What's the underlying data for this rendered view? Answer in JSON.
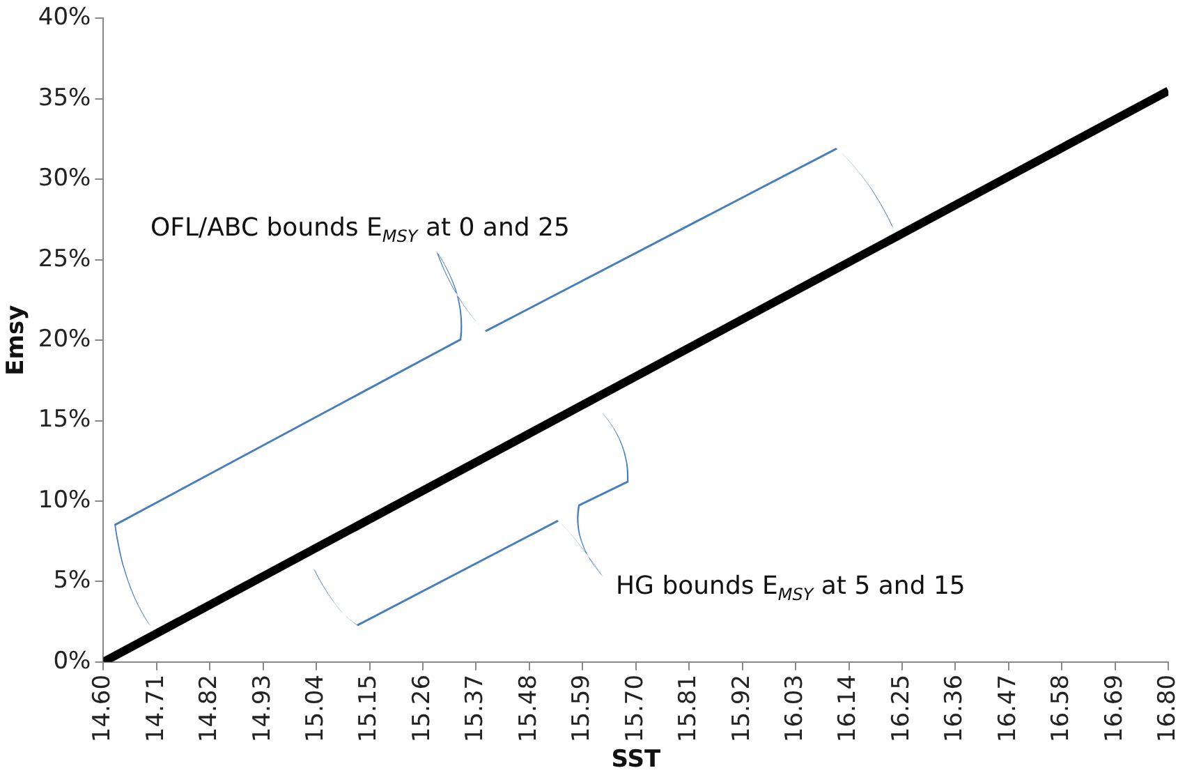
{
  "chart_data": {
    "type": "line",
    "xlabel": "SST",
    "ylabel": "Emsy",
    "x": [
      14.6,
      16.8
    ],
    "series": [
      {
        "color": "#000000",
        "values": [
          0,
          35.5
        ]
      }
    ],
    "xlim": [
      14.6,
      16.8
    ],
    "xticks": [
      {
        "value": 14.6,
        "label": "14.60"
      },
      {
        "value": 14.71,
        "label": "14.71"
      },
      {
        "value": 14.82,
        "label": "14.82"
      },
      {
        "value": 14.93,
        "label": "14.93"
      },
      {
        "value": 15.04,
        "label": "15.04"
      },
      {
        "value": 15.15,
        "label": "15.15"
      },
      {
        "value": 15.26,
        "label": "15.26"
      },
      {
        "value": 15.37,
        "label": "15.37"
      },
      {
        "value": 15.48,
        "label": "15.48"
      },
      {
        "value": 15.59,
        "label": "15.59"
      },
      {
        "value": 15.7,
        "label": "15.70"
      },
      {
        "value": 15.81,
        "label": "15.81"
      },
      {
        "value": 15.92,
        "label": "15.92"
      },
      {
        "value": 16.03,
        "label": "16.03"
      },
      {
        "value": 16.14,
        "label": "16.14"
      },
      {
        "value": 16.25,
        "label": "16.25"
      },
      {
        "value": 16.36,
        "label": "16.36"
      },
      {
        "value": 16.47,
        "label": "16.47"
      },
      {
        "value": 16.58,
        "label": "16.58"
      },
      {
        "value": 16.69,
        "label": "16.69"
      },
      {
        "value": 16.8,
        "label": "16.80"
      }
    ],
    "ylim": [
      0,
      40
    ],
    "yticks": [
      {
        "value": 0,
        "label": "0%"
      },
      {
        "value": 5,
        "label": "5%"
      },
      {
        "value": 10,
        "label": "10%"
      },
      {
        "value": 15,
        "label": "15%"
      },
      {
        "value": 20,
        "label": "20%"
      },
      {
        "value": 25,
        "label": "25%"
      },
      {
        "value": 30,
        "label": "30%"
      },
      {
        "value": 35,
        "label": "35%"
      },
      {
        "value": 40,
        "label": "40%"
      }
    ],
    "grid": false,
    "legend": false,
    "marker": "none",
    "line_style": "solid",
    "annotations": [
      "OFL/ABC bounds E$_{MSY}$ at 0 and 25",
      "HG bounds E$_{MSY}$ at 5 and 15"
    ]
  }
}
